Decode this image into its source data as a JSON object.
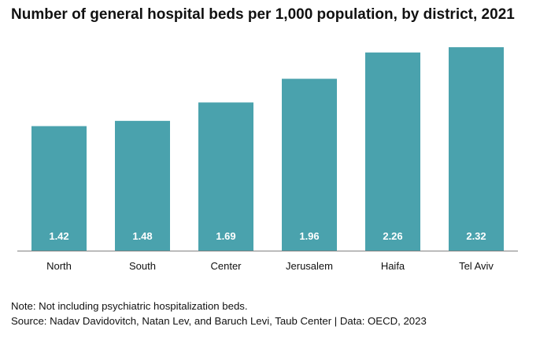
{
  "title": "Number of general hospital beds per 1,000 population, by district, 2021",
  "note": "Note: Not including psychiatric hospitalization beds.",
  "source": "Source: Nadav Davidovitch, Natan Lev, and Baruch Levi, Taub Center | Data: OECD, 2023",
  "colors": {
    "bar": "#4aa2ad",
    "bar_label": "#ffffff",
    "axis": "#808080"
  },
  "chart_data": {
    "type": "bar",
    "title": "Number of general hospital beds per 1,000 population, by district, 2021",
    "categories": [
      "North",
      "South",
      "Center",
      "Jerusalem",
      "Haifa",
      "Tel Aviv"
    ],
    "values": [
      1.42,
      1.48,
      1.69,
      1.96,
      2.26,
      2.32
    ],
    "data_labels": [
      "1.42",
      "1.48",
      "1.69",
      "1.96",
      "2.26",
      "2.32"
    ],
    "xlabel": "",
    "ylabel": "",
    "ylim": [
      0,
      2.5
    ],
    "grid": false,
    "legend": "none"
  }
}
